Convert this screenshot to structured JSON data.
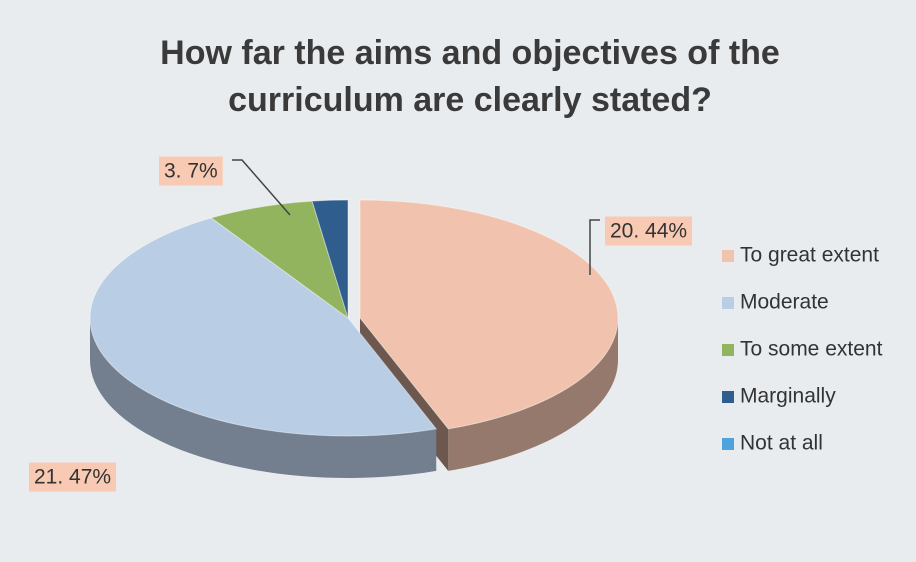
{
  "chart_data": {
    "type": "pie",
    "title": "How far the aims and objectives of the curriculum are clearly stated?",
    "categories": [
      "To great extent",
      "Moderate",
      "To some extent",
      "Marginally",
      "Not at all"
    ],
    "values": [
      20,
      21,
      3,
      1,
      0
    ],
    "value_labels": [
      "20. 44%",
      "21. 47%",
      "3. 7%",
      null,
      null
    ],
    "colors": [
      "#f1c3ae",
      "#b9cde5",
      "#93b45f",
      "#2f5e8e",
      "#4da3da"
    ],
    "legend": "right"
  }
}
